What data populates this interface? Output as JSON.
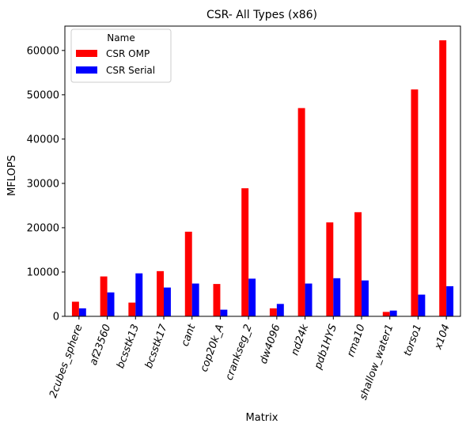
{
  "chart_data": {
    "type": "bar",
    "title": "CSR- All Types (x86)",
    "xlabel": "Matrix",
    "ylabel": "MFLOPS",
    "ylim": [
      0,
      65500
    ],
    "yticks": [
      0,
      10000,
      20000,
      30000,
      40000,
      50000,
      60000
    ],
    "categories": [
      "2cubes_sphere",
      "af23560",
      "bcsstk13",
      "bcsstk17",
      "cant",
      "cop20k_A",
      "crankseg_2",
      "dw4096",
      "nd24k",
      "pdb1HYS",
      "rma10",
      "shallow_water1",
      "torso1",
      "x104"
    ],
    "legend": {
      "title": "Name",
      "position": "top-left"
    },
    "series": [
      {
        "name": "CSR OMP",
        "color": "#ff0000",
        "values": [
          3300,
          9000,
          3100,
          10200,
          19100,
          7300,
          28900,
          1800,
          47000,
          21200,
          23500,
          1000,
          51200,
          62300
        ]
      },
      {
        "name": "CSR Serial",
        "color": "#0000ff",
        "values": [
          1800,
          5400,
          9700,
          6500,
          7400,
          1500,
          8500,
          2800,
          7400,
          8600,
          8100,
          1300,
          4900,
          6800
        ]
      }
    ],
    "grid": false
  }
}
